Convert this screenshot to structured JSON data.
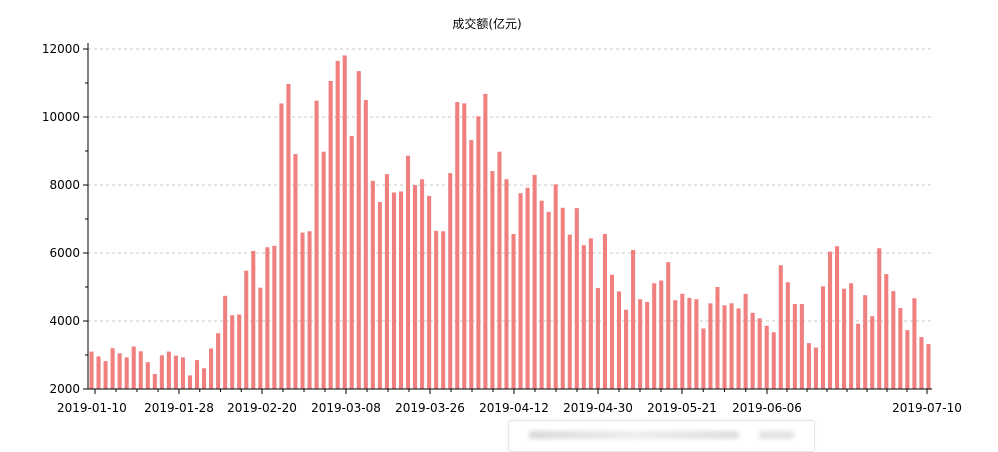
{
  "chart_data": {
    "type": "bar",
    "title": "成交额(亿元)",
    "xlabel": "",
    "ylabel": "",
    "ylim": [
      2000,
      12000
    ],
    "yticks": [
      2000,
      4000,
      6000,
      8000,
      10000,
      12000
    ],
    "x_tick_labels": [
      "2019-01-10",
      "2019-01-28",
      "2019-02-20",
      "2019-03-08",
      "2019-03-26",
      "2019-04-12",
      "2019-04-30",
      "2019-05-21",
      "2019-06-06",
      "2019-07-10"
    ],
    "grid": true,
    "bar_color": "#f08080",
    "values": [
      3100,
      2960,
      2820,
      3200,
      3050,
      2930,
      3250,
      3110,
      2790,
      2440,
      2990,
      3100,
      2980,
      2930,
      2400,
      2850,
      2610,
      3190,
      3640,
      4740,
      4170,
      4190,
      5480,
      6060,
      4980,
      6170,
      6210,
      10400,
      10970,
      8910,
      6600,
      6640,
      10480,
      8980,
      11060,
      11650,
      11810,
      9440,
      11350,
      10500,
      8120,
      7500,
      8320,
      7780,
      7810,
      8860,
      8000,
      8170,
      7680,
      6650,
      6640,
      8350,
      10440,
      10400,
      9320,
      10020,
      10680,
      8410,
      8980,
      8170,
      6560,
      7760,
      7920,
      8300,
      7540,
      7210,
      8020,
      7330,
      6540,
      7320,
      6230,
      6430,
      4970,
      6560,
      5360,
      4870,
      4330,
      6090,
      4640,
      4560,
      5110,
      5190,
      5730,
      4610,
      4800,
      4680,
      4640,
      3780,
      4520,
      5000,
      4460,
      4520,
      4370,
      4800,
      4240,
      4080,
      3860,
      3670,
      5640,
      5140,
      4500,
      4500,
      3350,
      3220,
      5020,
      6040,
      6200,
      4950,
      5110,
      3920,
      4760,
      4140,
      6140,
      5380,
      4880,
      4380,
      3730,
      4670,
      3530,
      3320
    ]
  }
}
